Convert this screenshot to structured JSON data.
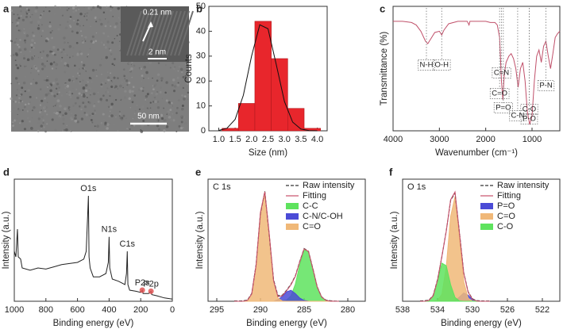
{
  "image_panel": {
    "label": "a",
    "lattice_spacing": "0.21 nm",
    "inset_scale": "2 nm",
    "scale_bar": "50 nm"
  },
  "chart_data": [
    {
      "type": "histogram",
      "panel": "b",
      "x_label": "Size (nm)",
      "y_label": "Counts",
      "bins": [
        1.1,
        1.6,
        2.1,
        2.6,
        3.1,
        3.6,
        4.1
      ],
      "values": [
        1,
        11,
        44,
        29,
        9,
        1
      ],
      "color": "#e8262c",
      "xlim": [
        0.7,
        4.3
      ],
      "xticks": [
        {
          "value": 1,
          "label": "1.0"
        },
        {
          "value": 1.5,
          "label": "1.5"
        },
        {
          "value": 2,
          "label": "2.0"
        },
        {
          "value": 2.5,
          "label": "2.5"
        },
        {
          "value": 3,
          "label": "3.0"
        },
        {
          "value": 3.5,
          "label": "3.5"
        },
        {
          "value": 4,
          "label": "4.0"
        }
      ],
      "ylim": [
        0,
        50
      ],
      "yticks": [
        0,
        10,
        20,
        30,
        40,
        50
      ],
      "fit": {
        "color": "#111111",
        "x": [
          1.0,
          1.25,
          1.5,
          1.75,
          2.0,
          2.25,
          2.5,
          2.75,
          3.0,
          3.25,
          3.5,
          3.75,
          4.0
        ],
        "values": [
          0.15,
          1.0,
          4.6,
          14.3,
          30.0,
          42.6,
          41.0,
          26.7,
          11.8,
          3.5,
          0.7,
          0.1,
          0.0
        ]
      }
    },
    {
      "type": "line",
      "panel": "c",
      "x_label": "Wavenumber (cm⁻¹)",
      "y_label": "Transmittance (%)",
      "color": "#c0506a",
      "x": [
        4000,
        3800,
        3600,
        3500,
        3400,
        3300,
        3250,
        3200,
        3100,
        3000,
        2950,
        2900,
        2800,
        2600,
        2400,
        2360,
        2340,
        2200,
        2000,
        1900,
        1800,
        1750,
        1700,
        1660,
        1630,
        1600,
        1560,
        1500,
        1450,
        1400,
        1350,
        1300,
        1250,
        1200,
        1150,
        1100,
        1050,
        1000,
        950,
        900,
        850,
        800,
        750,
        700,
        650,
        600,
        550,
        500,
        450,
        400
      ],
      "values": [
        88,
        88,
        87,
        85,
        80,
        72,
        70,
        73,
        79,
        80,
        77,
        81,
        86,
        88,
        88,
        85,
        88,
        88,
        88,
        87,
        87,
        85,
        75,
        40,
        25,
        45,
        55,
        60,
        62,
        58,
        50,
        35,
        50,
        55,
        40,
        15,
        5,
        12,
        40,
        60,
        65,
        55,
        68,
        72,
        60,
        50,
        62,
        75,
        78,
        80
      ],
      "xlim": [
        4000,
        400
      ],
      "xticks": [
        4000,
        3000,
        2000,
        1000
      ],
      "ylim": [
        0,
        100
      ],
      "annotations": [
        {
          "text": "N-H",
          "x": 3280
        },
        {
          "text": "O-H",
          "x": 2950
        },
        {
          "text": "C=N",
          "x": 1660
        },
        {
          "text": "C=O",
          "x": 1700
        },
        {
          "text": "P=O",
          "x": 1620
        },
        {
          "text": "C-N",
          "x": 1310
        },
        {
          "text": "P-N",
          "x": 700
        },
        {
          "text": "C-O",
          "x": 1060
        },
        {
          "text": "P-O",
          "x": 1060
        }
      ]
    },
    {
      "type": "line",
      "panel": "d",
      "x_label": "Binding energy (eV)",
      "y_label": "Intensity (a.u.)",
      "color": "#222222",
      "x": [
        1000,
        990,
        980,
        975,
        960,
        950,
        900,
        850,
        800,
        750,
        700,
        650,
        600,
        560,
        545,
        535,
        531,
        527,
        520,
        500,
        460,
        420,
        405,
        400,
        396,
        380,
        340,
        300,
        290,
        285,
        281,
        270,
        230,
        200,
        190,
        185,
        150,
        135,
        130,
        100,
        50,
        0
      ],
      "values": [
        45,
        40,
        65,
        40,
        38,
        30,
        28,
        30,
        29,
        31,
        33,
        34,
        35,
        38,
        45,
        80,
        95,
        40,
        30,
        22,
        22,
        25,
        35,
        58,
        30,
        20,
        18,
        15,
        25,
        45,
        15,
        10,
        9,
        8,
        10,
        7,
        7,
        9,
        6,
        5,
        3,
        2
      ],
      "xlim": [
        1000,
        0
      ],
      "xticks": [
        1000,
        800,
        600,
        400,
        200,
        0
      ],
      "ylim": [
        0,
        110
      ],
      "marker_color": "#e05555",
      "annotations": [
        {
          "text": "O1s",
          "x": 531,
          "y": 95
        },
        {
          "text": "N1s",
          "x": 400,
          "y": 58
        },
        {
          "text": "C1s",
          "x": 285,
          "y": 45
        },
        {
          "text": "P2s",
          "x": 190,
          "y": 10,
          "marked": true
        },
        {
          "text": "P2p",
          "x": 135,
          "y": 9,
          "marked": true
        }
      ]
    },
    {
      "type": "area",
      "panel": "e",
      "title": "C 1s",
      "x_label": "Binding energy (eV)",
      "y_label": "Intensity (a.u.)",
      "legend": "upper right",
      "x": [
        293,
        292.5,
        292,
        291.5,
        291,
        290.5,
        290,
        289.5,
        289,
        288.5,
        288,
        287.5,
        287,
        286.5,
        286,
        285.5,
        285,
        284.5,
        284,
        283.5,
        283,
        282.5,
        282,
        281.5,
        281
      ],
      "series": [
        {
          "name": "Raw intensity",
          "color": "#333333",
          "style": "dashed",
          "values": [
            0.3,
            0.2,
            0.4,
            1.0,
            7.0,
            33.0,
            79.0,
            99.0,
            60.0,
            19.5,
            5.0,
            5.5,
            10.0,
            15.5,
            23.0,
            36.0,
            47.5,
            45.0,
            29.5,
            13.0,
            4.0,
            1.0,
            0.5,
            0.2,
            0.1
          ]
        },
        {
          "name": "Fitting",
          "color": "#c8506a",
          "style": "line",
          "values": [
            0,
            0,
            0,
            0.7,
            6.6,
            32.5,
            80,
            98.6,
            61,
            18.6,
            4.2,
            4.8,
            9.6,
            14.9,
            22.5,
            35.6,
            47.2,
            44.8,
            29.1,
            12.8,
            3.8,
            0.8,
            0.1,
            0,
            0
          ]
        },
        {
          "name": "C-C",
          "color": "#5ee35e",
          "style": "area",
          "values": [
            0,
            0,
            0,
            0,
            0,
            0,
            0,
            0,
            0,
            0,
            0,
            0.2,
            1.1,
            5.0,
            15.6,
            32.7,
            46.5,
            44.7,
            29.1,
            12.8,
            3.8,
            0.8,
            0.1,
            0,
            0
          ]
        },
        {
          "name": "C-N/C-OH",
          "color": "#4b4bd6",
          "style": "area",
          "values": [
            0,
            0,
            0,
            0,
            0,
            0,
            0,
            0,
            0,
            0,
            1.4,
            4.4,
            8.5,
            9.9,
            6.9,
            2.9,
            0.7,
            0.1,
            0,
            0,
            0,
            0,
            0,
            0,
            0
          ]
        },
        {
          "name": "C=O",
          "color": "#f0b878",
          "style": "area",
          "values": [
            0,
            0,
            0,
            0.7,
            6.6,
            32.5,
            80,
            98.6,
            61,
            18.6,
            2.8,
            0.2,
            0,
            0,
            0,
            0,
            0,
            0,
            0,
            0,
            0,
            0,
            0,
            0,
            0
          ]
        }
      ],
      "xlim": [
        296,
        278
      ],
      "xticks": [
        295,
        290,
        285,
        280
      ],
      "ylim": [
        0,
        110
      ]
    },
    {
      "type": "area",
      "panel": "f",
      "title": "O 1s",
      "x_label": "Binding energy (eV)",
      "y_label": "Intensity (a.u.)",
      "legend": "upper right",
      "x": [
        536,
        535.5,
        535,
        534.5,
        534,
        533.5,
        533,
        532.5,
        532,
        531.5,
        531,
        530.5,
        530,
        529.5,
        529,
        528.5,
        528
      ],
      "series": [
        {
          "name": "Raw intensity",
          "color": "#333333",
          "style": "dashed",
          "values": [
            0.3,
            0.5,
            1.0,
            5.5,
            20.5,
            42.0,
            66.5,
            95.0,
            102.0,
            65.5,
            27.0,
            9.0,
            2.2,
            0.6,
            0.3,
            0.2,
            0.2
          ]
        },
        {
          "name": "Fitting",
          "color": "#c8506a",
          "style": "line",
          "values": [
            0,
            0,
            0.7,
            5.1,
            19.9,
            42.5,
            66.0,
            95.6,
            102.9,
            65.0,
            26.4,
            8.6,
            1.8,
            0.2,
            0,
            0,
            0
          ]
        },
        {
          "name": "P=O",
          "color": "#4b4bd6",
          "style": "area",
          "values": [
            0,
            0,
            0,
            0,
            0,
            0,
            0,
            0,
            0.7,
            3.9,
            7.8,
            5.8,
            1.6,
            0.2,
            0,
            0,
            0
          ]
        },
        {
          "name": "C=O",
          "color": "#f0b878",
          "style": "area",
          "values": [
            0,
            0,
            0,
            0,
            0.7,
            6.6,
            32.5,
            80,
            98.6,
            60.7,
            18.6,
            2.8,
            0.2,
            0,
            0,
            0,
            0
          ]
        },
        {
          "name": "C-O",
          "color": "#5ee35e",
          "style": "area",
          "values": [
            0,
            0,
            0.7,
            5.1,
            19.2,
            35.9,
            33.5,
            15.6,
            3.6,
            0.4,
            0,
            0,
            0,
            0,
            0,
            0,
            0
          ]
        }
      ],
      "xlim": [
        538,
        520
      ],
      "xticks": [
        538,
        534,
        530,
        526,
        522
      ],
      "ylim": [
        0,
        115
      ]
    }
  ]
}
